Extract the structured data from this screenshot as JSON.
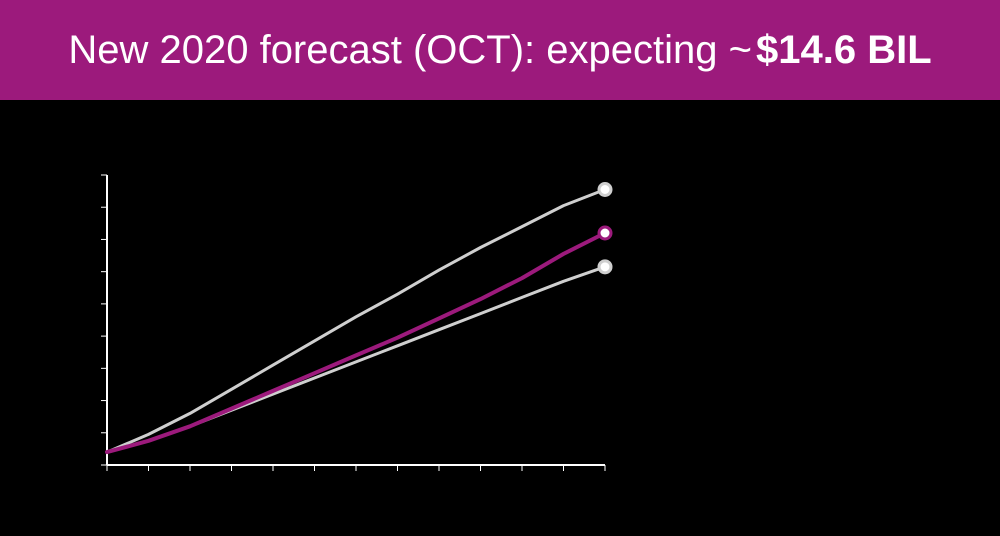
{
  "header": {
    "title_lead": "New 2020 forecast (OCT): expecting ~",
    "title_amount": "$14.6 BIL"
  },
  "colors": {
    "banner_bg": "#9c1a7c",
    "forecast_line": "#9c1a7c",
    "range_lines": "#cfcfcf",
    "background": "#000000"
  },
  "chart_data": {
    "type": "line",
    "title": "",
    "xlabel": "",
    "ylabel": "",
    "x": [
      0,
      1,
      2,
      3,
      4,
      5,
      6,
      7,
      8,
      9,
      10,
      11,
      12
    ],
    "ylim": [
      0,
      9
    ],
    "grid": false,
    "series": [
      {
        "key": "upper",
        "values": [
          0.4,
          0.95,
          1.6,
          2.35,
          3.1,
          3.85,
          4.6,
          5.3,
          6.05,
          6.75,
          7.4,
          8.05,
          8.55
        ]
      },
      {
        "key": "forecast",
        "values": [
          0.4,
          0.75,
          1.2,
          1.75,
          2.3,
          2.85,
          3.4,
          3.95,
          4.55,
          5.15,
          5.8,
          6.55,
          7.2
        ]
      },
      {
        "key": "lower",
        "values": [
          0.4,
          0.75,
          1.2,
          1.7,
          2.2,
          2.7,
          3.2,
          3.7,
          4.2,
          4.7,
          5.2,
          5.7,
          6.15
        ]
      }
    ]
  }
}
